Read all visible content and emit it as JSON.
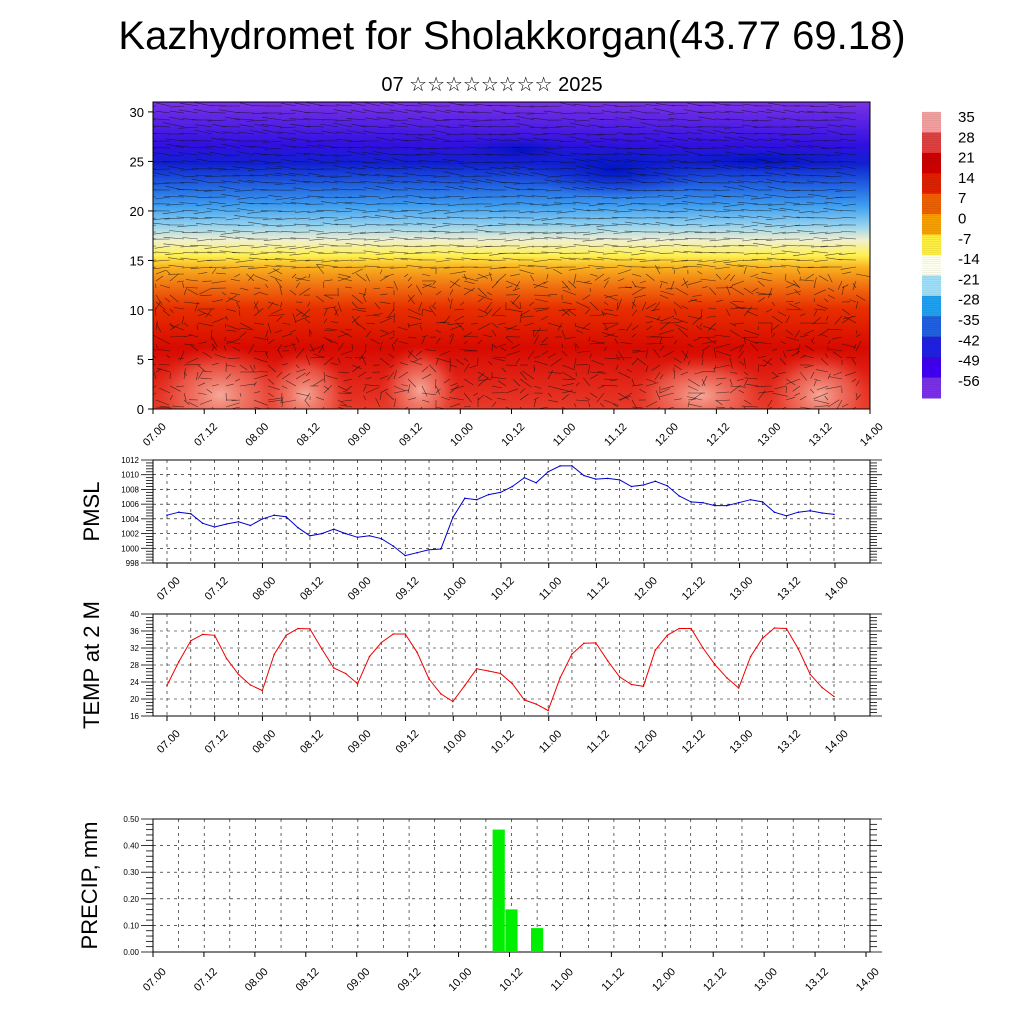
{
  "header": {
    "title": "Kazhydromet for Sholakkorgan(43.77 69.18)",
    "subtitle": "07 ☆☆☆☆☆☆☆☆ 2025"
  },
  "colors": {
    "pmsl_line": "#0000cc",
    "temp_line": "#ee0000",
    "precip_bar": "#00ee00"
  },
  "chart_data": [
    {
      "type": "heatmap",
      "description": "temperature cross-section with wind vectors",
      "x_ticks": [
        "07.00",
        "07.12",
        "08.00",
        "08.12",
        "09.00",
        "09.12",
        "10.00",
        "10.12",
        "11.00",
        "11.12",
        "12.00",
        "12.12",
        "13.00",
        "13.12",
        "14.00"
      ],
      "y_ticks": [
        0,
        5,
        10,
        15,
        20,
        25,
        30
      ],
      "ylim": [
        0,
        31
      ],
      "colorbar_labels": [
        "35",
        "28",
        "21",
        "14",
        "7",
        "0",
        "-7",
        "-14",
        "-21",
        "-28",
        "-35",
        "-42",
        "-49",
        "-56"
      ],
      "colorbar_colors": [
        "#f4a0a0",
        "#e04040",
        "#d00000",
        "#e02000",
        "#f06000",
        "#f8a000",
        "#fff040",
        "#fffff0",
        "#a0e0f8",
        "#20a0f0",
        "#2060e0",
        "#2020e0",
        "#4000f0",
        "#7a30e8"
      ]
    },
    {
      "type": "line",
      "ylabel": "PMSL",
      "ylim": [
        998,
        1012
      ],
      "y_ticks": [
        "998",
        "1000",
        "1002",
        "1004",
        "1006",
        "1008",
        "1010",
        "1012"
      ],
      "x_ticks": [
        "07.00",
        "07.12",
        "08.00",
        "08.12",
        "09.00",
        "09.12",
        "10.00",
        "10.12",
        "11.00",
        "11.12",
        "12.00",
        "12.12",
        "13.00",
        "13.12",
        "14.00"
      ],
      "x": [
        0.0,
        0.25,
        0.5,
        0.75,
        1.0,
        1.25,
        1.5,
        1.75,
        2.0,
        2.25,
        2.5,
        2.75,
        3.0,
        3.25,
        3.5,
        3.75,
        4.0,
        4.25,
        4.5,
        4.75,
        5.0,
        5.25,
        5.5,
        5.75,
        6.0,
        6.25,
        6.5,
        6.75,
        7.0,
        7.25,
        7.5,
        7.75,
        8.0,
        8.25,
        8.5,
        8.75,
        9.0,
        9.25,
        9.5,
        9.75,
        10.0,
        10.25,
        10.5,
        10.75,
        11.0,
        11.25,
        11.5,
        11.75,
        12.0,
        12.25,
        12.5,
        12.75,
        13.0,
        13.25,
        13.5,
        13.75,
        14.0
      ],
      "values": [
        1004.5,
        1004.9,
        1004.7,
        1003.4,
        1002.9,
        1003.3,
        1003.6,
        1003.1,
        1004.0,
        1004.5,
        1004.3,
        1002.8,
        1001.7,
        1002.0,
        1002.6,
        1002.0,
        1001.5,
        1001.7,
        1001.3,
        1000.3,
        999.0,
        999.4,
        999.8,
        999.9,
        1004.2,
        1006.8,
        1006.6,
        1007.3,
        1007.6,
        1008.4,
        1009.6,
        1008.9,
        1010.4,
        1011.2,
        1011.2,
        1009.9,
        1009.4,
        1009.5,
        1009.3,
        1008.4,
        1008.6,
        1009.1,
        1008.5,
        1007.1,
        1006.3,
        1006.2,
        1005.8,
        1005.8,
        1006.2,
        1006.6,
        1006.3,
        1004.9,
        1004.4,
        1004.9,
        1005.1,
        1004.8,
        1004.6
      ]
    },
    {
      "type": "line",
      "ylabel": "TEMP at 2 M",
      "ylim": [
        16,
        40
      ],
      "y_ticks": [
        "16",
        "20",
        "24",
        "28",
        "32",
        "36",
        "40"
      ],
      "x_ticks": [
        "07.00",
        "07.12",
        "08.00",
        "08.12",
        "09.00",
        "09.12",
        "10.00",
        "10.12",
        "11.00",
        "11.12",
        "12.00",
        "12.12",
        "13.00",
        "13.12",
        "14.00"
      ],
      "x": [
        0.0,
        0.25,
        0.5,
        0.75,
        1.0,
        1.25,
        1.5,
        1.75,
        2.0,
        2.25,
        2.5,
        2.75,
        3.0,
        3.25,
        3.5,
        3.75,
        4.0,
        4.25,
        4.5,
        4.75,
        5.0,
        5.25,
        5.5,
        5.75,
        6.0,
        6.25,
        6.5,
        6.75,
        7.0,
        7.25,
        7.5,
        7.75,
        8.0,
        8.25,
        8.5,
        8.75,
        9.0,
        9.25,
        9.5,
        9.75,
        10.0,
        10.25,
        10.5,
        10.75,
        11.0,
        11.25,
        11.5,
        11.75,
        12.0,
        12.25,
        12.5,
        12.75,
        13.0,
        13.25,
        13.5,
        13.75,
        14.0
      ],
      "values": [
        23.2,
        28.8,
        33.7,
        35.2,
        35.0,
        29.5,
        25.8,
        23.3,
        22.0,
        30.5,
        35.0,
        36.6,
        36.5,
        31.8,
        27.3,
        26.0,
        23.6,
        30.0,
        33.3,
        35.3,
        35.3,
        31.0,
        24.7,
        21.2,
        19.4,
        23.2,
        27.1,
        26.6,
        26.0,
        23.6,
        19.8,
        18.8,
        17.3,
        25.0,
        30.6,
        33.1,
        33.2,
        29.0,
        25.2,
        23.4,
        23.0,
        31.5,
        35.0,
        36.6,
        36.6,
        32.0,
        28.1,
        25.0,
        22.6,
        30.0,
        34.3,
        36.7,
        36.6,
        31.8,
        25.8,
        22.7,
        20.6
      ]
    },
    {
      "type": "bar",
      "ylabel": "PRECIP, mm",
      "ylim": [
        0,
        0.5
      ],
      "y_ticks": [
        "0.00",
        "0.10",
        "0.20",
        "0.30",
        "0.40",
        "0.50"
      ],
      "x_ticks": [
        "07.00",
        "07.12",
        "08.00",
        "08.12",
        "09.00",
        "09.12",
        "10.00",
        "10.12",
        "11.00",
        "11.12",
        "12.00",
        "12.12",
        "13.00",
        "13.12",
        "14.00"
      ],
      "x": [
        6.75,
        7.0,
        7.5
      ],
      "values": [
        0.46,
        0.16,
        0.09
      ]
    }
  ]
}
